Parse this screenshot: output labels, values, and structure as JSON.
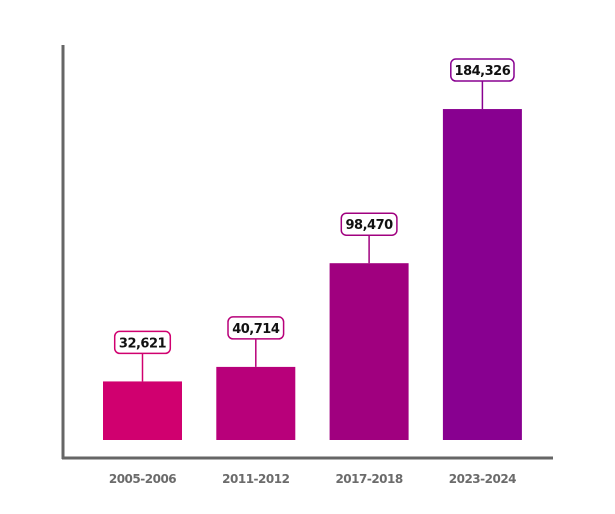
{
  "chart_data": {
    "type": "bar",
    "title": "",
    "xlabel": "",
    "ylabel": "",
    "categories": [
      "2005-2006",
      "2011-2012",
      "2017-2018",
      "2023-2024"
    ],
    "values": [
      32621,
      40714,
      98470,
      184326
    ],
    "value_labels": [
      "32,621",
      "40,714",
      "98,470",
      "184,326"
    ],
    "colors": [
      "#d0006f",
      "#b8007a",
      "#a0007f",
      "#880090"
    ],
    "ylim": [
      0,
      220000
    ],
    "grid": false,
    "legend": "none"
  }
}
